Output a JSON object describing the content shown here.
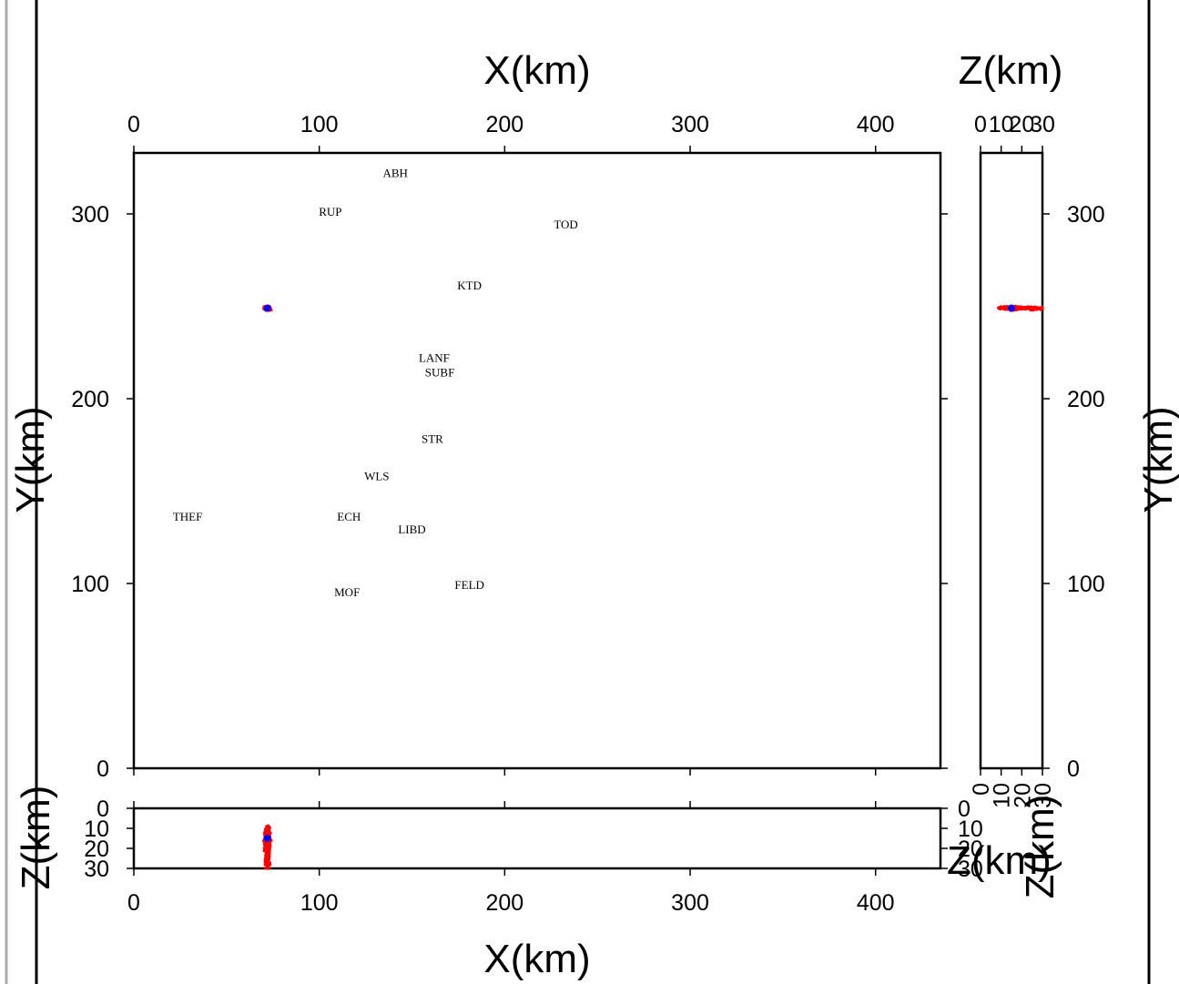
{
  "chart_data": {
    "type": "scatter",
    "panels": {
      "map": {
        "xlabel_top": "X(km)",
        "ylabel_left": "Y(km)",
        "ylabel_right": "Y(km)",
        "xlim": [
          0,
          435
        ],
        "ylim": [
          0,
          333
        ],
        "xticks": [
          0,
          100,
          200,
          300,
          400
        ],
        "yticks": [
          0,
          100,
          200,
          300
        ]
      },
      "yz_section": {
        "xlabel_top": "Z(km)",
        "zlim": [
          0,
          30
        ],
        "zticks": [
          0,
          10,
          20,
          30
        ]
      },
      "xz_section": {
        "xlabel_bottom": "X(km)",
        "ylabel_left": "Z(km)",
        "zlim": [
          0,
          30
        ],
        "zticks": [
          0,
          10,
          20,
          30
        ],
        "zticks_bottom_right": [
          0,
          10,
          20,
          30
        ],
        "zlabels_bottom_right": [
          "Z(km)",
          "Z(km)"
        ]
      }
    },
    "stations": [
      {
        "name": "ABH",
        "x": 141,
        "y": 322
      },
      {
        "name": "RUP",
        "x": 106,
        "y": 301
      },
      {
        "name": "TOD",
        "x": 233,
        "y": 294
      },
      {
        "name": "KTD",
        "x": 181,
        "y": 261
      },
      {
        "name": "LANF",
        "x": 162,
        "y": 222
      },
      {
        "name": "SUBF",
        "x": 165,
        "y": 214
      },
      {
        "name": "STR",
        "x": 161,
        "y": 178
      },
      {
        "name": "WLS",
        "x": 131,
        "y": 158
      },
      {
        "name": "THEF",
        "x": 29,
        "y": 136
      },
      {
        "name": "ECH",
        "x": 116,
        "y": 136
      },
      {
        "name": "LIBD",
        "x": 150,
        "y": 129
      },
      {
        "name": "FELD",
        "x": 181,
        "y": 99
      },
      {
        "name": "MOF",
        "x": 115,
        "y": 95
      }
    ],
    "hypocenter": {
      "x": 72,
      "y": 249,
      "z": 15
    },
    "colors": {
      "scatter": "#ff0000",
      "best": "#0000ff",
      "axes": "#000000"
    }
  }
}
